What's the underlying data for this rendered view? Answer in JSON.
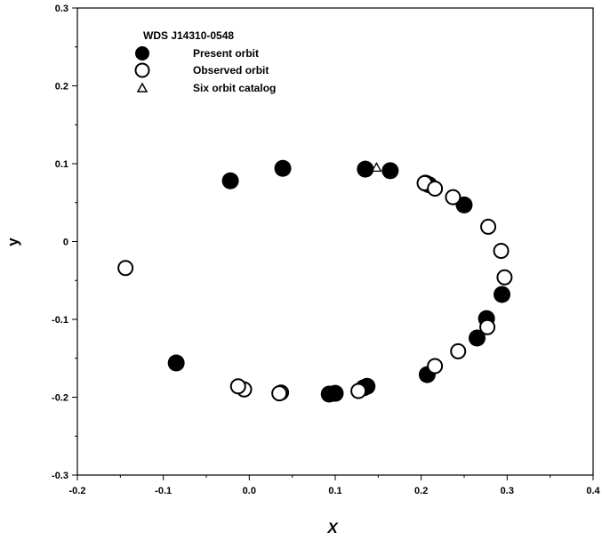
{
  "chart_data": {
    "type": "scatter",
    "xlabel": "X",
    "ylabel": "y",
    "xlim": [
      -0.2,
      0.4
    ],
    "ylim": [
      -0.3,
      0.3
    ],
    "x_ticks": [
      "-0.2",
      "-0.1",
      "0.0",
      "0.1",
      "0.2",
      "0.3",
      "0.4"
    ],
    "y_ticks": [
      "-0.3",
      "-0.2",
      "-0.1",
      "0",
      "0.1",
      "0.2",
      "0.3"
    ],
    "grid": false,
    "legend_position": "top-left",
    "legend_title": "WDS J14310-0548",
    "series": [
      {
        "name": "Present orbit",
        "marker": "filled-circle",
        "color": "#000000",
        "points": [
          [
            -0.022,
            0.078
          ],
          [
            0.039,
            0.094
          ],
          [
            0.135,
            0.093
          ],
          [
            0.164,
            0.091
          ],
          [
            0.205,
            0.075
          ],
          [
            0.209,
            0.073
          ],
          [
            0.25,
            0.047
          ],
          [
            0.294,
            -0.068
          ],
          [
            0.276,
            -0.099
          ],
          [
            0.265,
            -0.124
          ],
          [
            0.207,
            -0.171
          ],
          [
            0.137,
            -0.186
          ],
          [
            0.133,
            -0.188
          ],
          [
            0.1,
            -0.195
          ],
          [
            0.093,
            -0.196
          ],
          [
            -0.085,
            -0.156
          ]
        ]
      },
      {
        "name": "Observed orbit",
        "marker": "open-circle",
        "color": "#000000",
        "points": [
          [
            0.204,
            0.075
          ],
          [
            0.216,
            0.068
          ],
          [
            0.237,
            0.057
          ],
          [
            0.278,
            0.019
          ],
          [
            0.293,
            -0.012
          ],
          [
            0.297,
            -0.046
          ],
          [
            0.277,
            -0.11
          ],
          [
            0.243,
            -0.141
          ],
          [
            0.216,
            -0.16
          ],
          [
            0.127,
            -0.192
          ],
          [
            0.037,
            -0.194
          ],
          [
            0.035,
            -0.195
          ],
          [
            -0.006,
            -0.19
          ],
          [
            -0.013,
            -0.186
          ],
          [
            -0.144,
            -0.034
          ]
        ]
      },
      {
        "name": "Six orbit catalog",
        "marker": "open-triangle",
        "color": "#000000",
        "points": [
          [
            0.148,
            0.095
          ]
        ]
      }
    ]
  }
}
